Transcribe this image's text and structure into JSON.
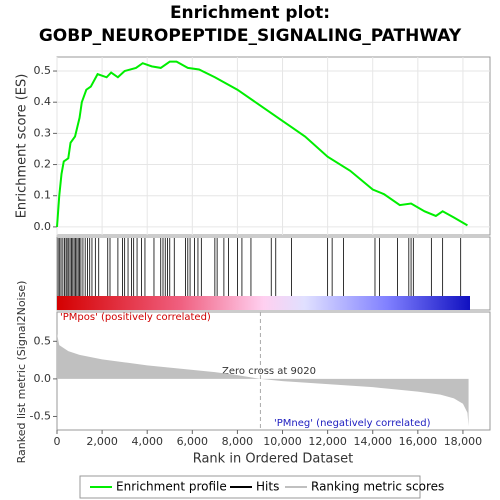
{
  "chart_data": [
    {
      "type": "line",
      "title": "Enrichment plot:",
      "subtitle": "GOBP_NEUROPEPTIDE_SIGNALING_PATHWAY",
      "ylabel": "Enrichment score (ES)",
      "x": [
        0,
        100,
        200,
        300,
        500,
        600,
        800,
        1000,
        1100,
        1300,
        1500,
        1800,
        2200,
        2400,
        2700,
        3000,
        3500,
        3800,
        4200,
        4600,
        5000,
        5300,
        5800,
        6300,
        7000,
        8000,
        9000,
        10000,
        11000,
        12000,
        13000,
        14000,
        14500,
        15200,
        15700,
        16300,
        16800,
        17100,
        17600,
        18200
      ],
      "series": [
        {
          "name": "Enrichment profile",
          "color": "#00ee00",
          "values": [
            0,
            0.1,
            0.17,
            0.21,
            0.22,
            0.27,
            0.29,
            0.35,
            0.4,
            0.44,
            0.45,
            0.49,
            0.48,
            0.495,
            0.48,
            0.5,
            0.51,
            0.525,
            0.515,
            0.51,
            0.53,
            0.53,
            0.51,
            0.505,
            0.48,
            0.44,
            0.39,
            0.34,
            0.29,
            0.225,
            0.18,
            0.12,
            0.105,
            0.07,
            0.075,
            0.05,
            0.035,
            0.05,
            0.03,
            0.005
          ]
        }
      ],
      "xlim": [
        0,
        19200
      ],
      "ylim": [
        -0.026,
        0.545
      ],
      "yticks": [
        {
          "value": 0,
          "label": "0.0"
        },
        0.1,
        0.2,
        0.3,
        0.4,
        0.5
      ],
      "grid": true
    },
    {
      "type": "rug",
      "series": [
        {
          "name": "Hits",
          "color": "#000000",
          "x": [
            50,
            120,
            180,
            260,
            330,
            400,
            450,
            520,
            580,
            640,
            700,
            760,
            820,
            880,
            940,
            1000,
            1060,
            1150,
            1250,
            1350,
            1450,
            1550,
            1700,
            1850,
            2250,
            2350,
            2700,
            2900,
            3000,
            3150,
            3300,
            3400,
            3550,
            3750,
            3900,
            4300,
            4600,
            4700,
            4800,
            4900,
            5000,
            5200,
            5700,
            5800,
            5900,
            6100,
            6250,
            6400,
            7000,
            7100,
            7400,
            7600,
            8000,
            8200,
            8600,
            9500,
            9700,
            10400,
            12000,
            12200,
            12700,
            14100,
            14300,
            15100,
            15600,
            15700,
            15800,
            16600,
            17100,
            17900
          ]
        }
      ],
      "xlim": [
        0,
        19200
      ]
    },
    {
      "type": "area",
      "xlabel": "Rank in Ordered Dataset",
      "ylabel": "Ranked list metric (Signal2Noise)",
      "x": [
        0,
        100,
        500,
        1000,
        2000,
        3000,
        4000,
        5000,
        6000,
        7000,
        8000,
        9020,
        10000,
        12000,
        14000,
        15000,
        16000,
        17000,
        17600,
        18000,
        18200,
        18250
      ],
      "series": [
        {
          "name": "Ranking metric scores",
          "color": "#c0c0c0",
          "values": [
            0.6,
            0.45,
            0.37,
            0.32,
            0.26,
            0.22,
            0.18,
            0.15,
            0.12,
            0.09,
            0.05,
            0,
            -0.03,
            -0.07,
            -0.11,
            -0.14,
            -0.17,
            -0.21,
            -0.26,
            -0.33,
            -0.45,
            -0.63
          ]
        }
      ],
      "xlim": [
        0,
        19200
      ],
      "ylim": [
        -0.68,
        0.89
      ],
      "yticks": [
        -0.5,
        {
          "value": 0,
          "label": "0.0"
        },
        0.5
      ],
      "xticks": [
        0,
        {
          "value": 2000,
          "label": "2,000"
        },
        {
          "value": 4000,
          "label": "4,000"
        },
        {
          "value": 6000,
          "label": "6,000"
        },
        {
          "value": 8000,
          "label": "8,000"
        },
        {
          "value": 10000,
          "label": "10,000"
        },
        {
          "value": 12000,
          "label": "12,000"
        },
        {
          "value": 14000,
          "label": "14,000"
        },
        {
          "value": 16000,
          "label": "16,000"
        },
        {
          "value": 18000,
          "label": "18,000"
        }
      ],
      "zero_cross": 9020,
      "annotations": {
        "pos": "'PMpos' (positively correlated)",
        "neg": "'PMneg' (negatively correlated)",
        "zero": "Zero cross at 9020"
      }
    }
  ]
}
